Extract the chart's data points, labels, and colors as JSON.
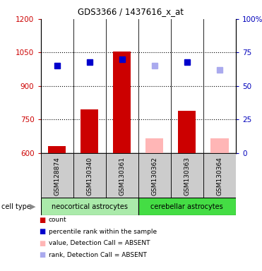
{
  "title": "GDS3366 / 1437616_x_at",
  "samples": [
    "GSM128874",
    "GSM130340",
    "GSM130361",
    "GSM130362",
    "GSM130363",
    "GSM130364"
  ],
  "ylim_left": [
    600,
    1200
  ],
  "ylim_right": [
    0,
    100
  ],
  "yticks_left": [
    600,
    750,
    900,
    1050,
    1200
  ],
  "yticks_right": [
    0,
    25,
    50,
    75,
    100
  ],
  "bar_values": [
    630,
    795,
    1055,
    null,
    790,
    null
  ],
  "absent_bar_values": [
    null,
    null,
    null,
    665,
    null,
    665
  ],
  "absent_bar_color": "#ffb6b6",
  "percentile_values": [
    65,
    68,
    70,
    null,
    68,
    null
  ],
  "percentile_color": "#0000cc",
  "absent_rank_values": [
    null,
    null,
    null,
    65,
    null,
    62
  ],
  "absent_rank_color": "#aaaaee",
  "bar_color": "#cc0000",
  "group1_label": "neocortical astrocytes",
  "group2_label": "cerebellar astrocytes",
  "group1_color": "#aaeaaa",
  "group2_color": "#44dd44",
  "cell_type_label": "cell type",
  "legend_items": [
    {
      "label": "count",
      "color": "#cc0000"
    },
    {
      "label": "percentile rank within the sample",
      "color": "#0000cc"
    },
    {
      "label": "value, Detection Call = ABSENT",
      "color": "#ffb6b6"
    },
    {
      "label": "rank, Detection Call = ABSENT",
      "color": "#aaaaee"
    }
  ],
  "background_color": "#ffffff",
  "bar_width": 0.55,
  "tick_color_left": "#cc0000",
  "tick_color_right": "#0000bb",
  "xlabel_bg": "#cccccc",
  "xlabel_border": "#888888"
}
